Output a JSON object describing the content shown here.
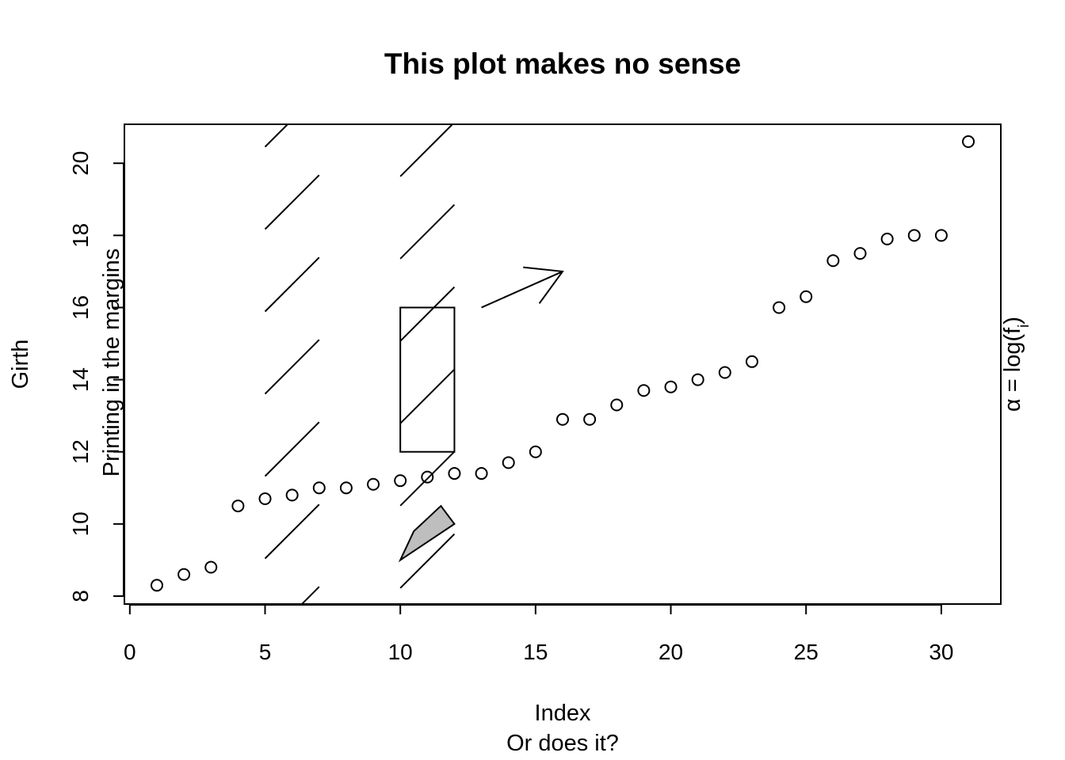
{
  "chart_data": {
    "type": "scatter",
    "title": "This plot makes no sense",
    "xlabel": "Index",
    "xlabel2": "Or does it?",
    "ylabel": "Girth",
    "margin_text_left": "Printing in the margins",
    "margin_text_right": "α = log(f",
    "margin_text_right_sub": "i",
    "margin_text_right_end": ")",
    "xlim": [
      -0.2,
      32.2
    ],
    "ylim": [
      7.78,
      21.08
    ],
    "x_ticks": [
      0,
      5,
      10,
      15,
      20,
      25,
      30
    ],
    "y_ticks": [
      8,
      10,
      12,
      14,
      16,
      18,
      20
    ],
    "grid": false,
    "series": [
      {
        "x": [
          1,
          2,
          3,
          4,
          5,
          6,
          7,
          8,
          9,
          10,
          11,
          12,
          13,
          14,
          15,
          16,
          17,
          18,
          19,
          20,
          21,
          22,
          23,
          24,
          25,
          26,
          27,
          28,
          29,
          30,
          31
        ],
        "y": [
          8.3,
          8.6,
          8.8,
          10.5,
          10.7,
          10.8,
          11.0,
          11.0,
          11.1,
          11.2,
          11.3,
          11.4,
          11.4,
          11.7,
          12.0,
          12.9,
          12.9,
          13.3,
          13.7,
          13.8,
          14.0,
          14.2,
          14.5,
          16.0,
          16.3,
          17.3,
          17.5,
          17.9,
          18.0,
          18.0,
          20.6
        ]
      }
    ],
    "annotations": {
      "rect": {
        "x0": 10,
        "y0": 12,
        "x1": 12,
        "y1": 16
      },
      "arrow": {
        "x0": 13,
        "y0": 16,
        "x1": 16,
        "y1": 17
      },
      "polygon": [
        [
          10,
          9
        ],
        [
          10.5,
          9.8
        ],
        [
          11.5,
          10.5
        ],
        [
          12,
          10
        ]
      ],
      "hatch_region": {
        "x0": 5,
        "x1": 7,
        "y0": 7.78,
        "y1": 21.08
      }
    }
  },
  "colors": {
    "ink": "#000000",
    "polygon_fill": "#bebebe",
    "background": "#ffffff"
  }
}
